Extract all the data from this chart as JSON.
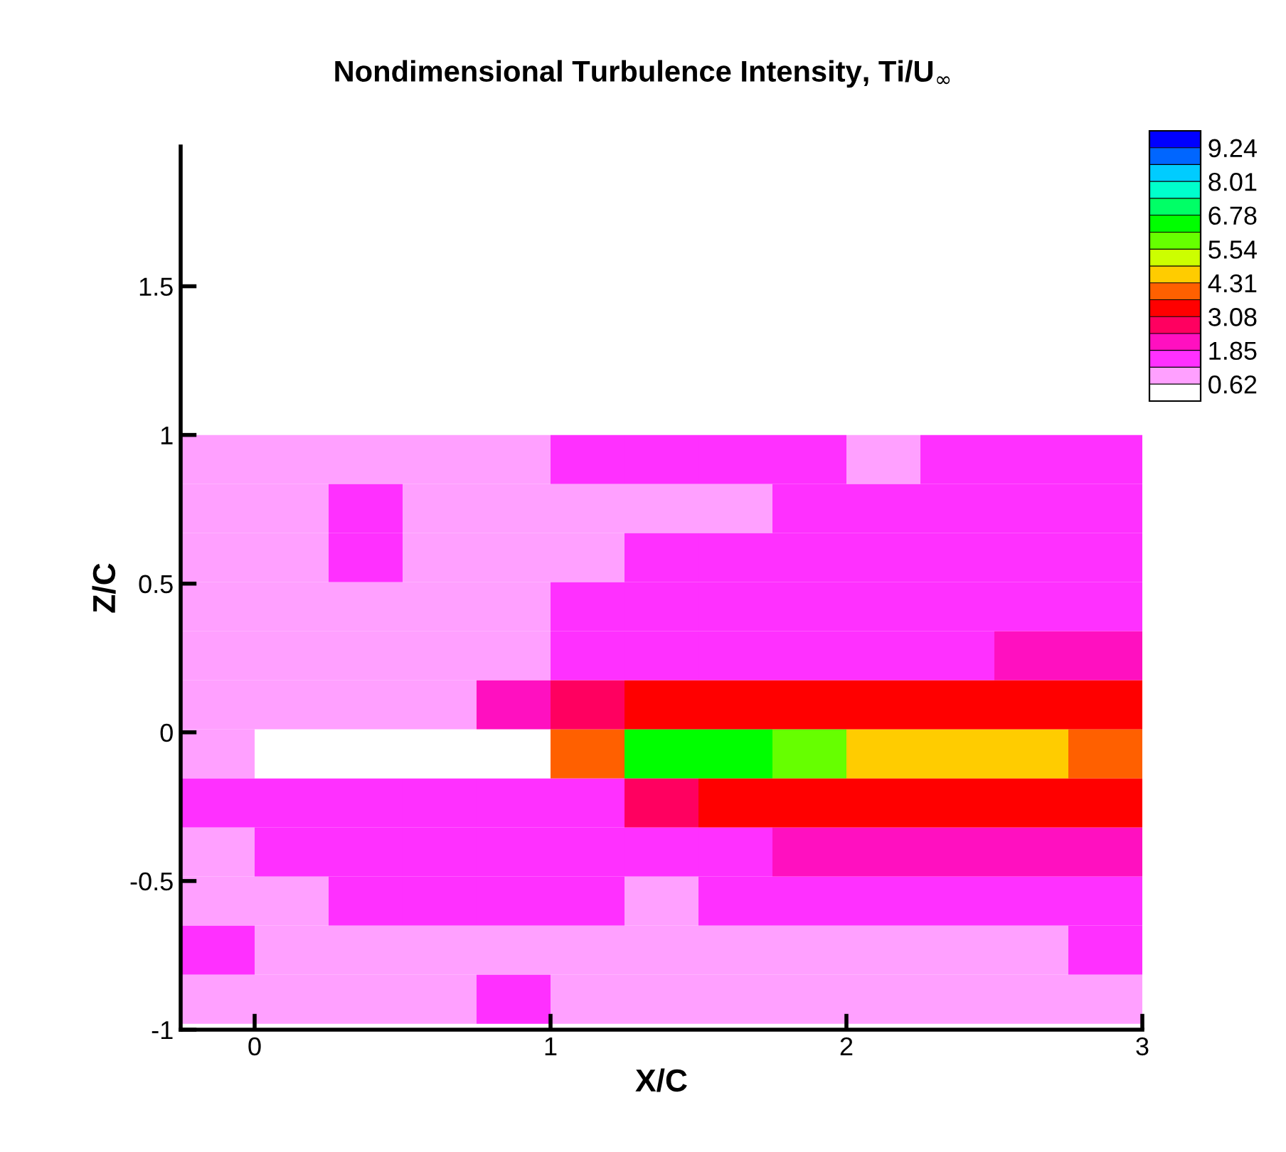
{
  "chart_data": {
    "type": "heatmap",
    "title": "Nondimensional Turbulence Intensity, Ti/U$_{∞}$",
    "xlabel": "X/C",
    "ylabel": "Z/C",
    "x": [
      -0.125,
      0.125,
      0.375,
      0.625,
      0.875,
      1.125,
      1.375,
      1.625,
      1.875,
      2.125,
      2.375,
      2.625,
      2.875
    ],
    "y": [
      0.9175,
      0.7525,
      0.5875,
      0.4225,
      0.2575,
      0.0925,
      -0.0725,
      -0.2375,
      -0.4025,
      -0.5675,
      -0.7325,
      -0.8975
    ],
    "cells": [
      [
        1.0,
        1.0,
        1.0,
        1.0,
        1.0,
        1.5,
        1.5,
        1.5,
        1.5,
        1.0,
        1.5,
        1.5,
        1.5
      ],
      [
        1.0,
        1.0,
        1.5,
        1.0,
        1.0,
        1.0,
        1.0,
        1.0,
        1.5,
        1.5,
        1.5,
        1.5,
        1.5
      ],
      [
        1.0,
        1.0,
        1.5,
        1.0,
        1.0,
        1.0,
        1.5,
        1.5,
        1.5,
        1.5,
        1.5,
        1.5,
        1.5
      ],
      [
        1.0,
        1.0,
        1.0,
        1.0,
        1.0,
        1.5,
        1.5,
        1.5,
        1.5,
        1.5,
        1.5,
        1.5,
        1.5
      ],
      [
        1.0,
        1.0,
        1.0,
        1.0,
        1.0,
        1.5,
        1.5,
        1.5,
        1.5,
        1.5,
        1.5,
        2.2,
        2.2
      ],
      [
        1.0,
        1.0,
        1.0,
        1.0,
        2.2,
        2.8,
        3.4,
        3.4,
        3.4,
        3.4,
        3.4,
        3.4,
        3.4
      ],
      [
        1.0,
        0.5,
        0.5,
        0.5,
        0.5,
        4.0,
        6.5,
        6.5,
        5.8,
        4.6,
        4.6,
        4.6,
        4.0
      ],
      [
        1.5,
        1.5,
        1.5,
        1.5,
        1.5,
        1.5,
        2.8,
        3.4,
        3.4,
        3.4,
        3.4,
        3.4,
        3.4
      ],
      [
        1.0,
        1.5,
        1.5,
        1.5,
        1.5,
        1.5,
        1.5,
        1.5,
        2.2,
        2.2,
        2.2,
        2.2,
        2.2
      ],
      [
        1.0,
        1.0,
        1.5,
        1.5,
        1.5,
        1.5,
        1.0,
        1.5,
        1.5,
        1.5,
        1.5,
        1.5,
        1.5
      ],
      [
        1.5,
        1.0,
        1.0,
        1.0,
        1.0,
        1.0,
        1.0,
        1.0,
        1.0,
        1.0,
        1.0,
        1.0,
        1.5
      ],
      [
        1.0,
        1.0,
        1.0,
        1.0,
        1.5,
        1.0,
        1.0,
        1.0,
        1.0,
        1.0,
        1.0,
        1.0,
        1.0
      ]
    ],
    "xlim": [
      -0.25,
      3
    ],
    "xticks": [
      0,
      1,
      2,
      3
    ],
    "ylim": [
      -1,
      1.97
    ],
    "yticks": [
      -1,
      -0.5,
      0,
      0.5,
      1,
      1.5
    ],
    "clim": [
      0,
      9.855
    ],
    "cticks": [
      0.62,
      {
        "value": 1.235,
        "label": null
      },
      1.85,
      {
        "value": 2.465,
        "label": null
      },
      3.08,
      {
        "value": 3.695,
        "label": null
      },
      4.31,
      {
        "value": 4.925,
        "label": null
      },
      5.54,
      {
        "value": 6.16,
        "label": null
      },
      6.78,
      {
        "value": 7.395,
        "label": null
      },
      8.01,
      {
        "value": 8.625,
        "label": null
      },
      9.24
    ],
    "colors": [
      "#ffffff",
      "#ffa0ff",
      "#ff30ff",
      "#ff10c0",
      "#ff0060",
      "#ff0000",
      "#ff6000",
      "#ffcc00",
      "#ccff00",
      "#66ff00",
      "#00ff00",
      "#00ff66",
      "#00ffcc",
      "#00ccff",
      "#0066ff",
      "#0000ff"
    ],
    "grid": false
  }
}
